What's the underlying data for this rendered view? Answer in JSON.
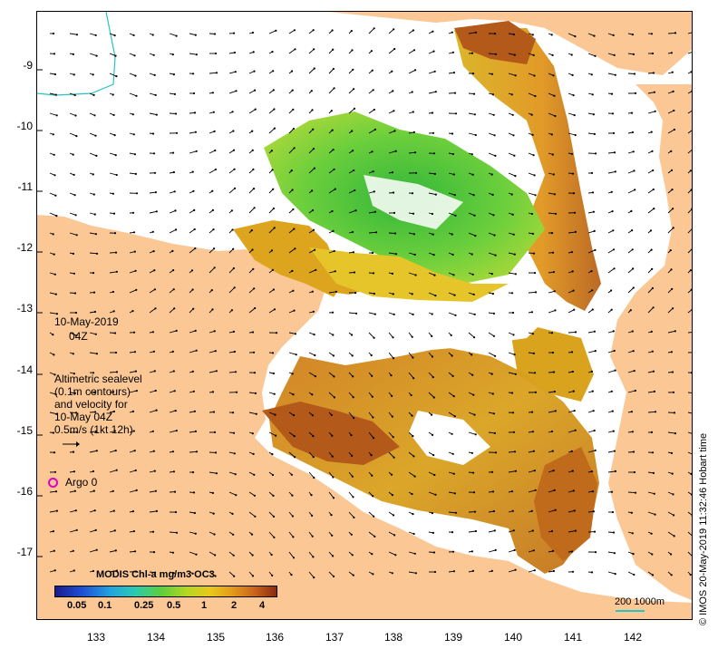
{
  "map": {
    "date_label": "10-May-2019",
    "time_label": "04Z",
    "legend_lines": [
      "Altimetric sealevel",
      "(0.1m contours)",
      "and velocity for",
      "10-May 04Z",
      "0.5m/s (1kt 12h)"
    ],
    "argo_label": "Argo 0",
    "colorbar_title": "MODIS Chl-a mg/m3 OC3",
    "colorbar_labels": [
      "0.05",
      "0.1",
      "0.25",
      "0.5",
      "1",
      "2",
      "4"
    ],
    "scale_label": "200  1000m",
    "credit": "© IMOS 20-May-2019 11:32:46 Hobart time",
    "lat_ticks": [
      "-9",
      "-10",
      "-11",
      "-12",
      "-13",
      "-14",
      "-15",
      "-16",
      "-17"
    ],
    "lon_ticks": [
      "133",
      "134",
      "135",
      "136",
      "137",
      "138",
      "139",
      "140",
      "141",
      "142"
    ],
    "colors": {
      "land": "#fbc895",
      "ocean": "#ffffff",
      "argo": "#e000c8",
      "isobath": "#27c3c3",
      "chl_green": "#4cc43a",
      "chl_yellow": "#dfc21c",
      "chl_orange": "#d98b1c",
      "chl_brown": "#a9501a"
    }
  }
}
